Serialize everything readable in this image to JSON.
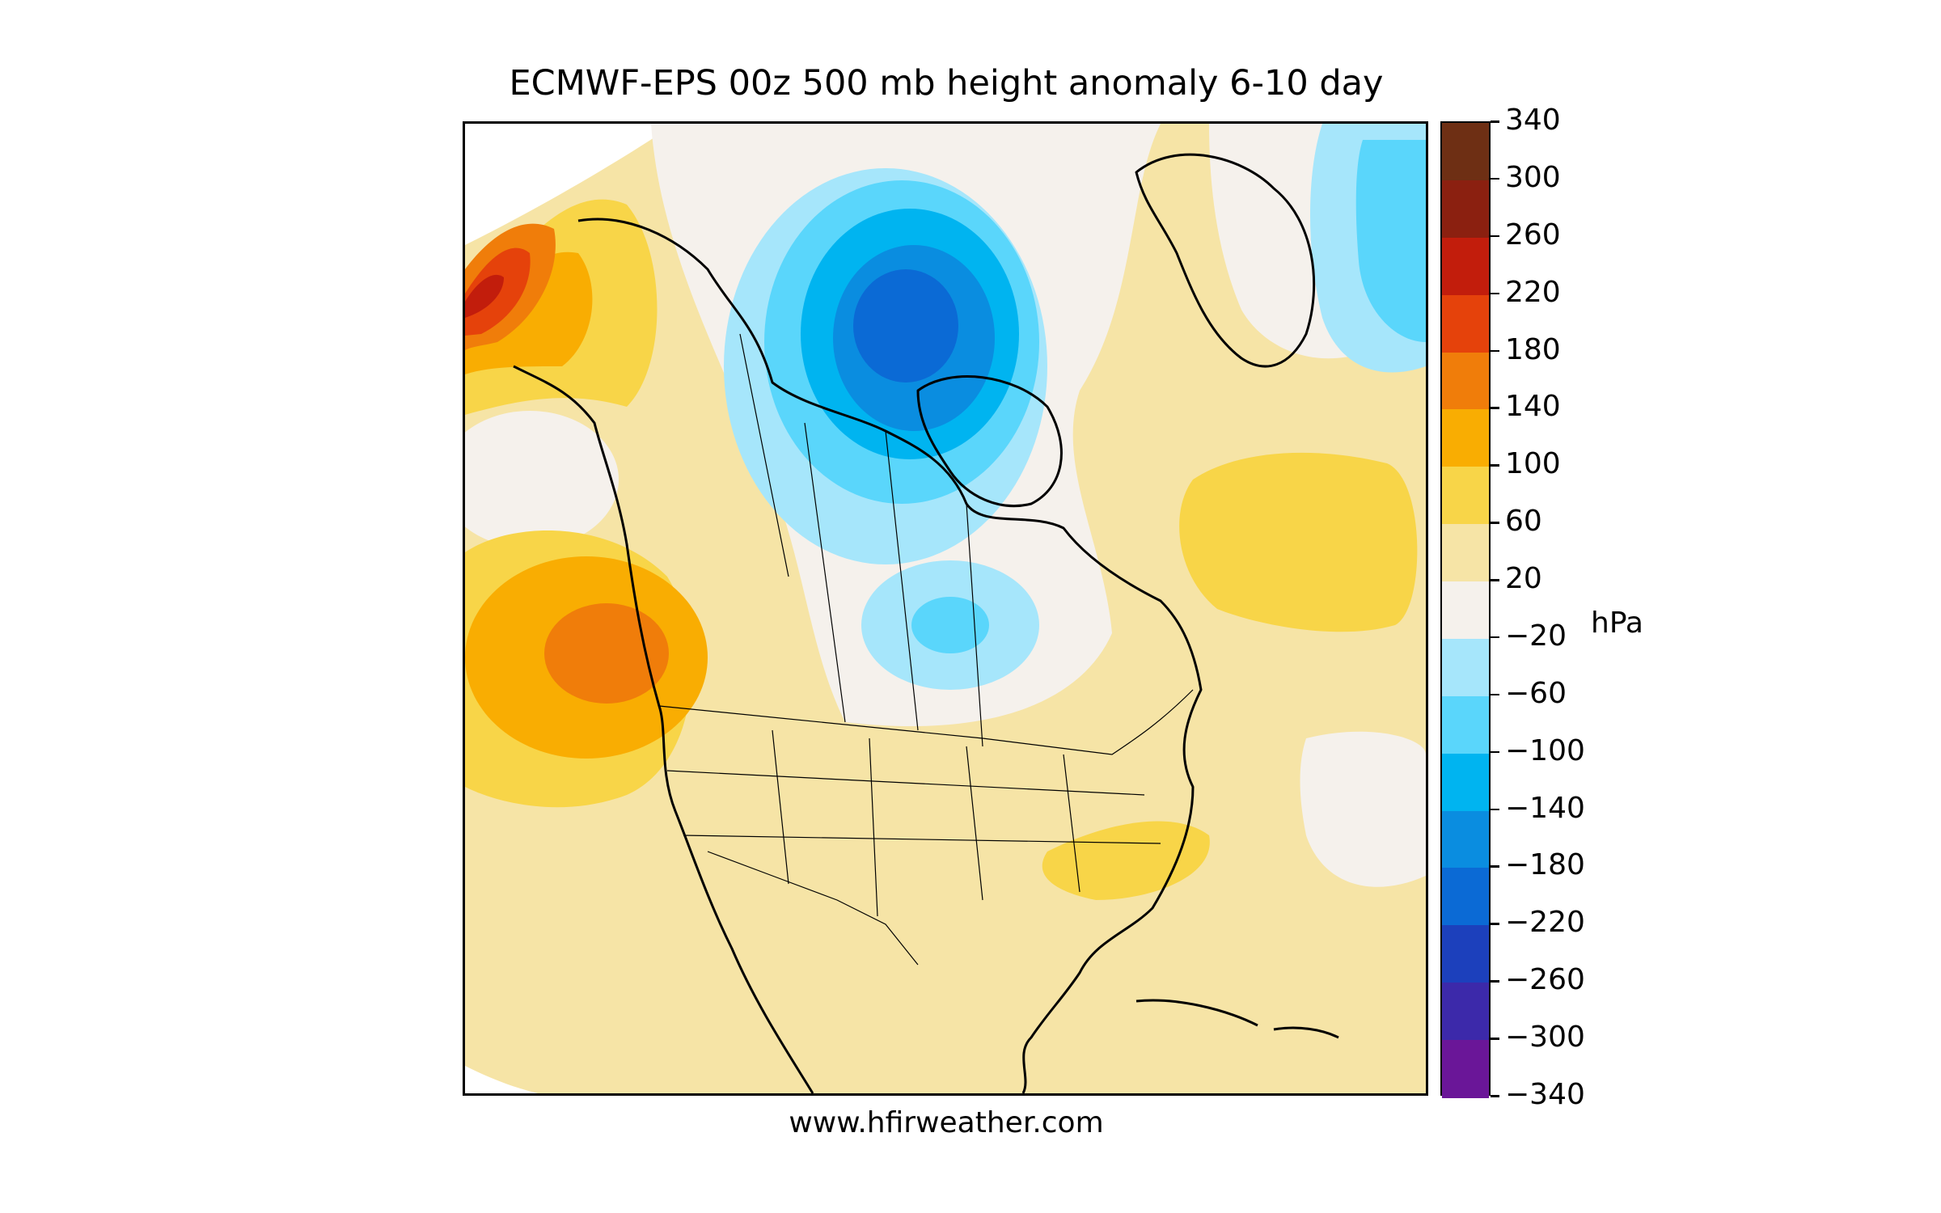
{
  "header": {
    "title": "ECMWF-EPS 00z 500 mb height anomaly 6-10 day"
  },
  "footer": {
    "credit": "www.hfirweather.com"
  },
  "colorbar": {
    "unit": "hPa",
    "ticks": [
      "340",
      "300",
      "260",
      "220",
      "180",
      "140",
      "100",
      "60",
      "20",
      "−20",
      "−60",
      "−100",
      "−140",
      "−180",
      "−220",
      "−260",
      "−300",
      "−340"
    ],
    "colors_top_to_bottom": [
      "#6e2f14",
      "#8b2010",
      "#c21d0c",
      "#e5420b",
      "#f07d0a",
      "#f9ad02",
      "#f8d548",
      "#f6e4a6",
      "#f5f1ec",
      "#a6e6fb",
      "#5ad6fb",
      "#00b4f0",
      "#0a8de0",
      "#0b6ad5",
      "#1c40bc",
      "#3c29aa",
      "#6a1698"
    ]
  },
  "map": {
    "region": "North America",
    "features": [
      "contour-fill",
      "coastlines",
      "country-borders",
      "state-borders"
    ],
    "land_outline_color": "#000000",
    "anomaly_centers": [
      {
        "label": "ridge-northeast-pacific",
        "value_max": 180,
        "color": "#f07d0a"
      },
      {
        "label": "ridge-bering-sea",
        "value_max": 260,
        "color": "#c21d0c"
      },
      {
        "label": "trough-canadian-arctic",
        "value_min": -220,
        "color": "#0b6ad5"
      },
      {
        "label": "trough-northern-plains",
        "value_min": -100,
        "color": "#5ad6fb"
      },
      {
        "label": "trough-east-greenland",
        "value_min": -100,
        "color": "#5ad6fb"
      }
    ]
  }
}
